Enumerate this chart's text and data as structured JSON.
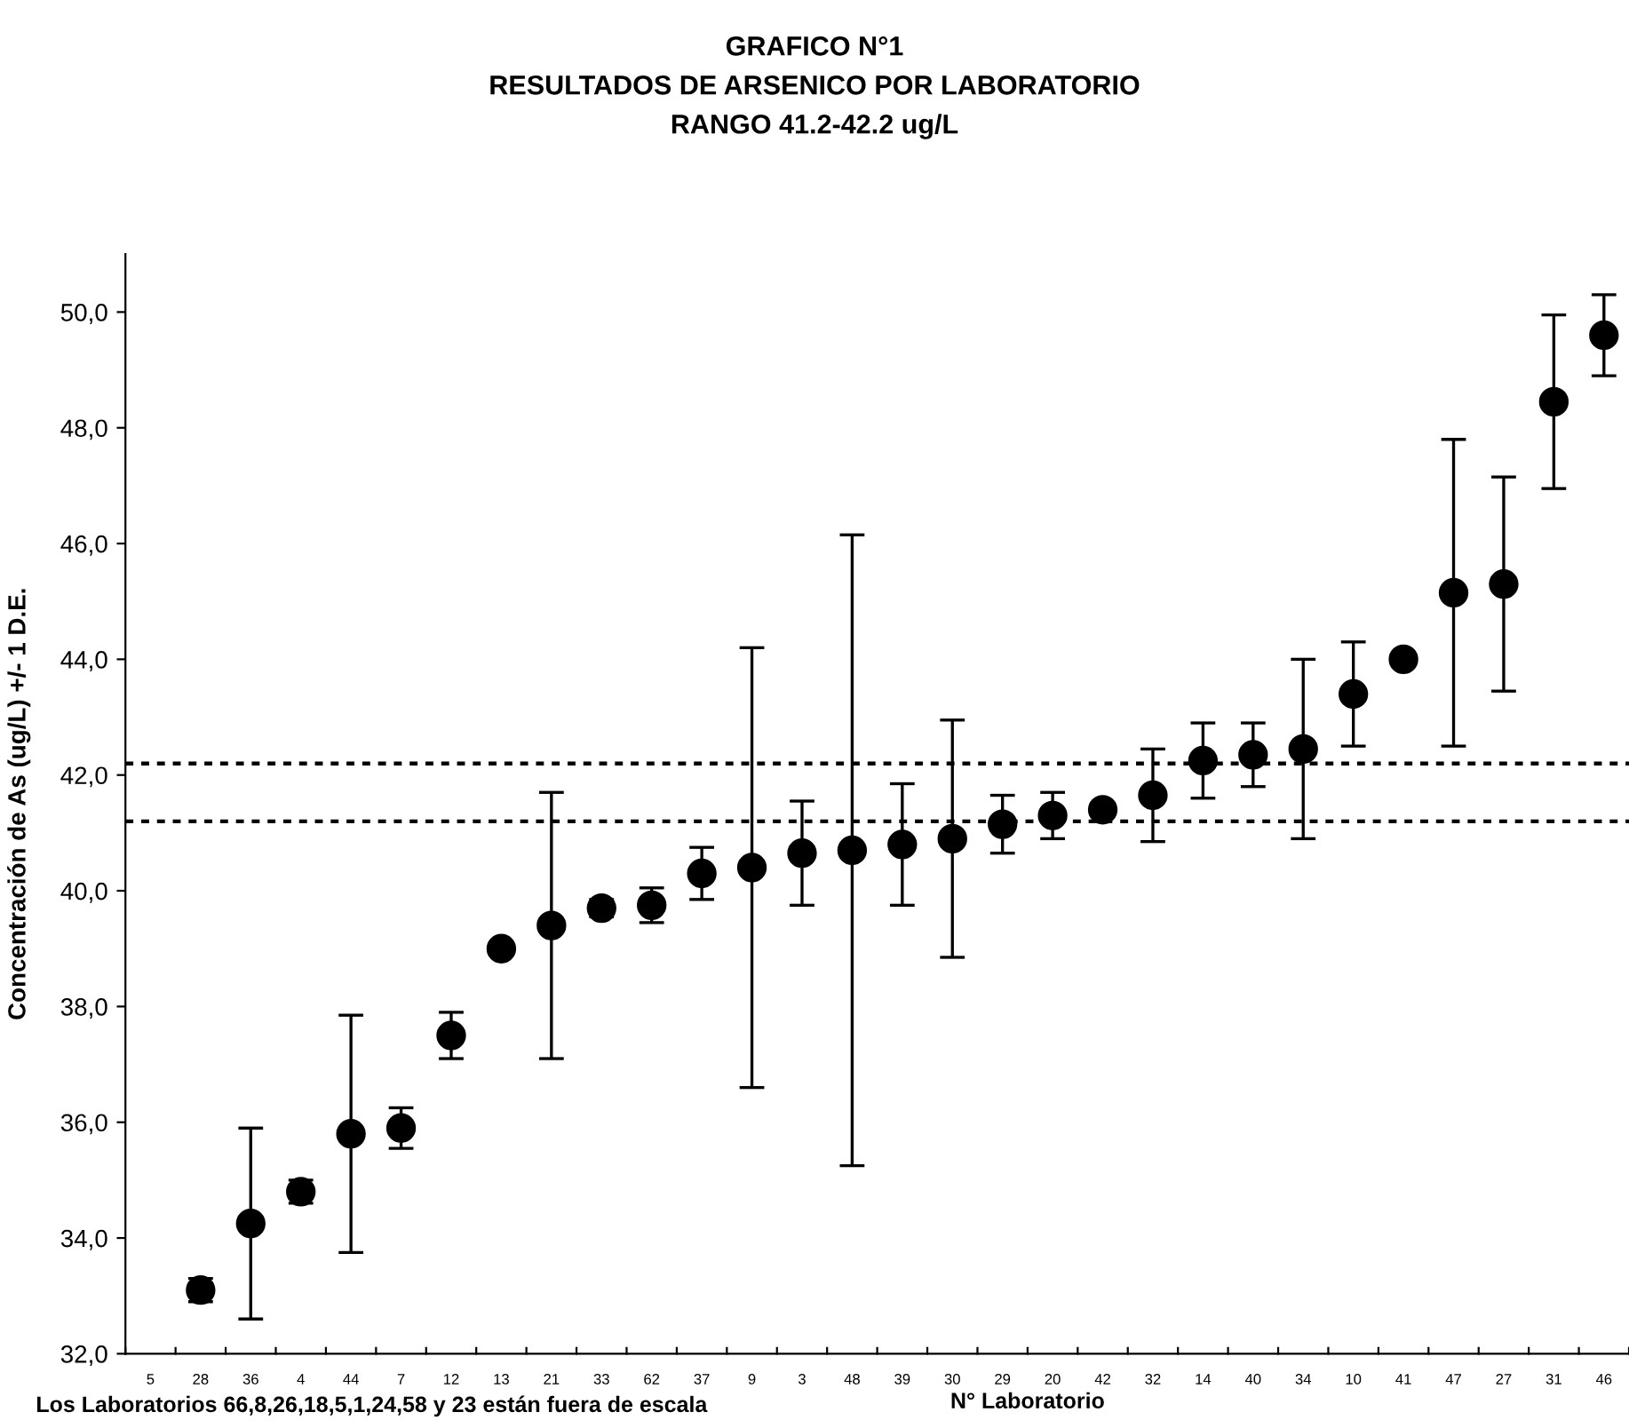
{
  "chart_data": {
    "type": "scatter",
    "title": "GRAFICO N°1\nRESULTADOS DE ARSENICO POR LABORATORIO\nRANGO 41.2-42.2 ug/L",
    "xlabel": "N° Laboratorio",
    "ylabel": "Concentración de As (ug/L) +/- 1 D.E.",
    "annotations": [
      "Los Laboratorios 66,8,26,18,5,1,24,58 y 23 están fuera de escala"
    ],
    "categories": [
      "5",
      "28",
      "36",
      "4",
      "44",
      "7",
      "12",
      "13",
      "21",
      "33",
      "62",
      "37",
      "9",
      "3",
      "48",
      "39",
      "30",
      "29",
      "20",
      "42",
      "32",
      "14",
      "40",
      "34",
      "10",
      "41",
      "47",
      "27",
      "31",
      "46"
    ],
    "series": [
      {
        "color": "#000000",
        "values": [
          null,
          33.1,
          34.25,
          34.8,
          35.8,
          35.9,
          37.5,
          39.0,
          39.4,
          39.7,
          39.75,
          40.3,
          40.4,
          40.65,
          40.7,
          40.8,
          40.9,
          41.15,
          41.3,
          41.4,
          41.65,
          42.25,
          42.35,
          42.45,
          43.4,
          44.0,
          45.15,
          45.3,
          48.45,
          49.6
        ],
        "errors": [
          null,
          0.2,
          1.65,
          0.2,
          2.05,
          0.35,
          0.4,
          null,
          2.3,
          0.15,
          0.3,
          0.45,
          3.8,
          0.9,
          5.45,
          1.05,
          2.05,
          0.5,
          0.4,
          null,
          0.8,
          0.65,
          0.55,
          1.55,
          0.9,
          null,
          2.65,
          1.85,
          1.5,
          0.7
        ]
      }
    ],
    "ylim": [
      32,
      51
    ],
    "yticks": [
      {
        "value": 32,
        "label": "32,0"
      },
      {
        "value": 34,
        "label": "34,0"
      },
      {
        "value": 36,
        "label": "36,0"
      },
      {
        "value": 38,
        "label": "38,0"
      },
      {
        "value": 40,
        "label": "40,0"
      },
      {
        "value": 42,
        "label": "42,0"
      },
      {
        "value": 44,
        "label": "44,0"
      },
      {
        "value": 46,
        "label": "46,0"
      },
      {
        "value": 48,
        "label": "48,0"
      },
      {
        "value": 50,
        "label": "50,0"
      }
    ],
    "ref_lines": [
      {
        "axis": "y",
        "value": 41.2,
        "label": null,
        "color": "#000000",
        "line_style": "dotted"
      },
      {
        "axis": "y",
        "value": 42.2,
        "label": null,
        "color": "#000000",
        "line_style": "dotted"
      }
    ],
    "marker": "circle",
    "grid": false,
    "legend": false
  }
}
